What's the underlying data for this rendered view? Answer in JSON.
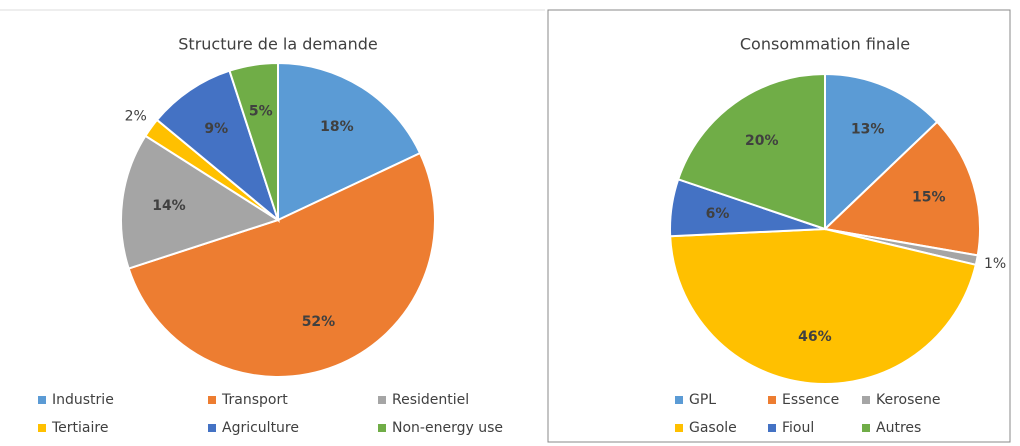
{
  "chart_data": [
    {
      "type": "pie",
      "title": "Structure de la demande",
      "categories": [
        "Industrie",
        "Transport",
        "Residentiel",
        "Tertiaire",
        "Agriculture",
        "Non-energy use"
      ],
      "values": [
        18,
        52,
        14,
        2,
        9,
        5
      ],
      "value_labels": [
        "18%",
        "52%",
        "14%",
        "2%",
        "9%",
        "5%"
      ],
      "colors": [
        "#5b9bd5",
        "#ed7d31",
        "#a5a5a5",
        "#ffc000",
        "#4472c4",
        "#70ad47"
      ],
      "legend": "bottom"
    },
    {
      "type": "pie",
      "title": "Consommation finale",
      "categories": [
        "GPL",
        "Essence",
        "Kerosene",
        "Gasole",
        "Fioul",
        "Autres"
      ],
      "values": [
        13,
        15,
        1,
        46,
        6,
        20
      ],
      "value_labels": [
        "13%",
        "15%",
        "1%",
        "46%",
        "6%",
        "20%"
      ],
      "colors": [
        "#5b9bd5",
        "#ed7d31",
        "#a5a5a5",
        "#ffc000",
        "#4472c4",
        "#70ad47"
      ],
      "legend": "bottom"
    }
  ]
}
